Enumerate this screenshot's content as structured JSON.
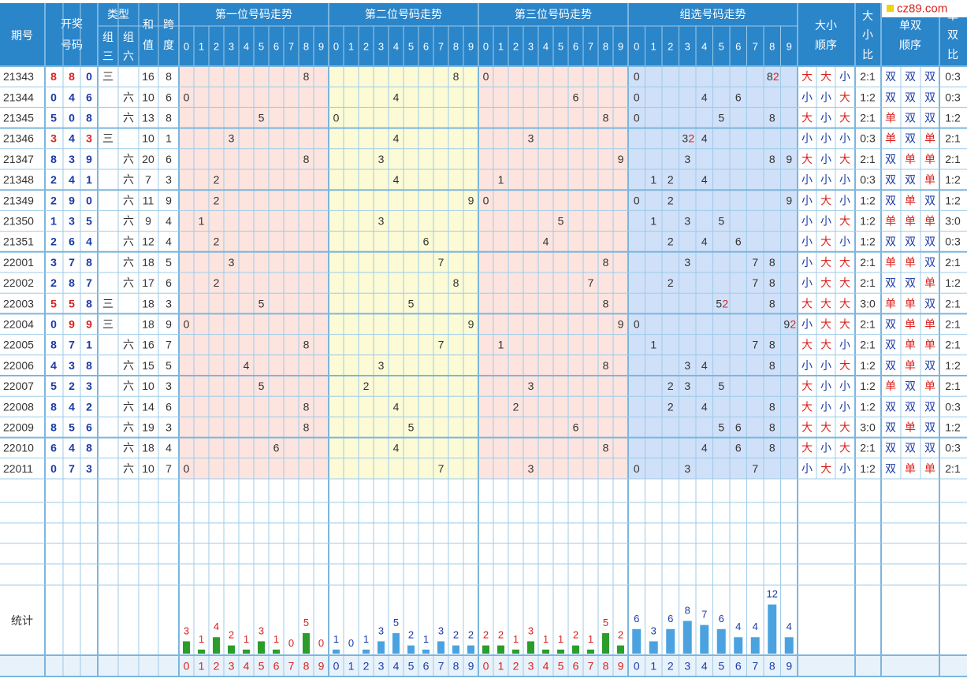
{
  "header": {
    "issue": "期号",
    "draw": [
      "开奖",
      "号码"
    ],
    "type": "类型",
    "type_sub": [
      [
        "组",
        "三"
      ],
      [
        "组",
        "六"
      ]
    ],
    "sum": [
      "和",
      "值"
    ],
    "span": [
      "跨",
      "度"
    ],
    "pos1": "第一位号码走势",
    "pos2": "第二位号码走势",
    "pos3": "第三位号码走势",
    "group": "组选号码走势",
    "bigsmall": [
      "大小",
      "顺序"
    ],
    "bsratio": [
      "大",
      "小",
      "比"
    ],
    "oddeven": [
      "单双",
      "顺序"
    ],
    "oeratio": [
      "单",
      "双",
      "比"
    ],
    "digits": [
      "0",
      "1",
      "2",
      "3",
      "4",
      "5",
      "6",
      "7",
      "8",
      "9"
    ]
  },
  "watermark": "cz89.com",
  "rows": [
    {
      "issue": "21343",
      "n": [
        "8",
        "8",
        "0"
      ],
      "t3": "三",
      "t6": "",
      "sum": "16",
      "span": "8",
      "bs": [
        "大",
        "大",
        "小"
      ],
      "bsr": "2:1",
      "oe": [
        "双",
        "双",
        "双"
      ],
      "oer": "0:3"
    },
    {
      "issue": "21344",
      "n": [
        "0",
        "4",
        "6"
      ],
      "t3": "",
      "t6": "六",
      "sum": "10",
      "span": "6",
      "bs": [
        "小",
        "小",
        "大"
      ],
      "bsr": "1:2",
      "oe": [
        "双",
        "双",
        "双"
      ],
      "oer": "0:3"
    },
    {
      "issue": "21345",
      "n": [
        "5",
        "0",
        "8"
      ],
      "t3": "",
      "t6": "六",
      "sum": "13",
      "span": "8",
      "bs": [
        "大",
        "小",
        "大"
      ],
      "bsr": "2:1",
      "oe": [
        "单",
        "双",
        "双"
      ],
      "oer": "1:2"
    },
    {
      "issue": "21346",
      "n": [
        "3",
        "4",
        "3"
      ],
      "t3": "三",
      "t6": "",
      "sum": "10",
      "span": "1",
      "bs": [
        "小",
        "小",
        "小"
      ],
      "bsr": "0:3",
      "oe": [
        "单",
        "双",
        "单"
      ],
      "oer": "2:1"
    },
    {
      "issue": "21347",
      "n": [
        "8",
        "3",
        "9"
      ],
      "t3": "",
      "t6": "六",
      "sum": "20",
      "span": "6",
      "bs": [
        "大",
        "小",
        "大"
      ],
      "bsr": "2:1",
      "oe": [
        "双",
        "单",
        "单"
      ],
      "oer": "2:1"
    },
    {
      "issue": "21348",
      "n": [
        "2",
        "4",
        "1"
      ],
      "t3": "",
      "t6": "六",
      "sum": "7",
      "span": "3",
      "bs": [
        "小",
        "小",
        "小"
      ],
      "bsr": "0:3",
      "oe": [
        "双",
        "双",
        "单"
      ],
      "oer": "1:2"
    },
    {
      "issue": "21349",
      "n": [
        "2",
        "9",
        "0"
      ],
      "t3": "",
      "t6": "六",
      "sum": "11",
      "span": "9",
      "bs": [
        "小",
        "大",
        "小"
      ],
      "bsr": "1:2",
      "oe": [
        "双",
        "单",
        "双"
      ],
      "oer": "1:2"
    },
    {
      "issue": "21350",
      "n": [
        "1",
        "3",
        "5"
      ],
      "t3": "",
      "t6": "六",
      "sum": "9",
      "span": "4",
      "bs": [
        "小",
        "小",
        "大"
      ],
      "bsr": "1:2",
      "oe": [
        "单",
        "单",
        "单"
      ],
      "oer": "3:0"
    },
    {
      "issue": "21351",
      "n": [
        "2",
        "6",
        "4"
      ],
      "t3": "",
      "t6": "六",
      "sum": "12",
      "span": "4",
      "bs": [
        "小",
        "大",
        "小"
      ],
      "bsr": "1:2",
      "oe": [
        "双",
        "双",
        "双"
      ],
      "oer": "0:3"
    },
    {
      "issue": "22001",
      "n": [
        "3",
        "7",
        "8"
      ],
      "t3": "",
      "t6": "六",
      "sum": "18",
      "span": "5",
      "bs": [
        "小",
        "大",
        "大"
      ],
      "bsr": "2:1",
      "oe": [
        "单",
        "单",
        "双"
      ],
      "oer": "2:1"
    },
    {
      "issue": "22002",
      "n": [
        "2",
        "8",
        "7"
      ],
      "t3": "",
      "t6": "六",
      "sum": "17",
      "span": "6",
      "bs": [
        "小",
        "大",
        "大"
      ],
      "bsr": "2:1",
      "oe": [
        "双",
        "双",
        "单"
      ],
      "oer": "1:2"
    },
    {
      "issue": "22003",
      "n": [
        "5",
        "5",
        "8"
      ],
      "t3": "三",
      "t6": "",
      "sum": "18",
      "span": "3",
      "bs": [
        "大",
        "大",
        "大"
      ],
      "bsr": "3:0",
      "oe": [
        "单",
        "单",
        "双"
      ],
      "oer": "2:1"
    },
    {
      "issue": "22004",
      "n": [
        "0",
        "9",
        "9"
      ],
      "t3": "三",
      "t6": "",
      "sum": "18",
      "span": "9",
      "bs": [
        "小",
        "大",
        "大"
      ],
      "bsr": "2:1",
      "oe": [
        "双",
        "单",
        "单"
      ],
      "oer": "2:1"
    },
    {
      "issue": "22005",
      "n": [
        "8",
        "7",
        "1"
      ],
      "t3": "",
      "t6": "六",
      "sum": "16",
      "span": "7",
      "bs": [
        "大",
        "大",
        "小"
      ],
      "bsr": "2:1",
      "oe": [
        "双",
        "单",
        "单"
      ],
      "oer": "2:1"
    },
    {
      "issue": "22006",
      "n": [
        "4",
        "3",
        "8"
      ],
      "t3": "",
      "t6": "六",
      "sum": "15",
      "span": "5",
      "bs": [
        "小",
        "小",
        "大"
      ],
      "bsr": "1:2",
      "oe": [
        "双",
        "单",
        "双"
      ],
      "oer": "1:2"
    },
    {
      "issue": "22007",
      "n": [
        "5",
        "2",
        "3"
      ],
      "t3": "",
      "t6": "六",
      "sum": "10",
      "span": "3",
      "bs": [
        "大",
        "小",
        "小"
      ],
      "bsr": "1:2",
      "oe": [
        "单",
        "双",
        "单"
      ],
      "oer": "2:1"
    },
    {
      "issue": "22008",
      "n": [
        "8",
        "4",
        "2"
      ],
      "t3": "",
      "t6": "六",
      "sum": "14",
      "span": "6",
      "bs": [
        "大",
        "小",
        "小"
      ],
      "bsr": "1:2",
      "oe": [
        "双",
        "双",
        "双"
      ],
      "oer": "0:3"
    },
    {
      "issue": "22009",
      "n": [
        "8",
        "5",
        "6"
      ],
      "t3": "",
      "t6": "六",
      "sum": "19",
      "span": "3",
      "bs": [
        "大",
        "大",
        "大"
      ],
      "bsr": "3:0",
      "oe": [
        "双",
        "单",
        "双"
      ],
      "oer": "1:2"
    },
    {
      "issue": "22010",
      "n": [
        "6",
        "4",
        "8"
      ],
      "t3": "",
      "t6": "六",
      "sum": "18",
      "span": "4",
      "bs": [
        "大",
        "小",
        "大"
      ],
      "bsr": "2:1",
      "oe": [
        "双",
        "双",
        "双"
      ],
      "oer": "0:3"
    },
    {
      "issue": "22011",
      "n": [
        "0",
        "7",
        "3"
      ],
      "t3": "",
      "t6": "六",
      "sum": "10",
      "span": "7",
      "bs": [
        "小",
        "大",
        "小"
      ],
      "bsr": "1:2",
      "oe": [
        "双",
        "单",
        "单"
      ],
      "oer": "2:1"
    }
  ],
  "stats_label": "统计",
  "colors": {
    "header": "#2b85c9",
    "pos1_bg": "#fde4df",
    "pos2_bg": "#fdfbd6",
    "pos3_bg": "#fde4df",
    "group_bg": "#cfe0f8",
    "red": "#d9231f",
    "blue": "#1a3ba8",
    "green_bar": "#2a9d2a",
    "blue_bar": "#4aa3e0"
  },
  "chart_data": {
    "type": "bar",
    "categories": [
      "0",
      "1",
      "2",
      "3",
      "4",
      "5",
      "6",
      "7",
      "8",
      "9"
    ],
    "series": [
      {
        "name": "第一位号码走势",
        "values": [
          3,
          1,
          4,
          2,
          1,
          3,
          1,
          0,
          5,
          0
        ]
      },
      {
        "name": "第二位号码走势",
        "values": [
          1,
          0,
          1,
          3,
          5,
          2,
          1,
          3,
          2,
          2
        ]
      },
      {
        "name": "第三位号码走势",
        "values": [
          2,
          2,
          1,
          3,
          1,
          1,
          2,
          1,
          5,
          2
        ]
      },
      {
        "name": "组选号码走势",
        "values": [
          6,
          3,
          6,
          8,
          7,
          6,
          4,
          4,
          12,
          4
        ]
      }
    ]
  }
}
